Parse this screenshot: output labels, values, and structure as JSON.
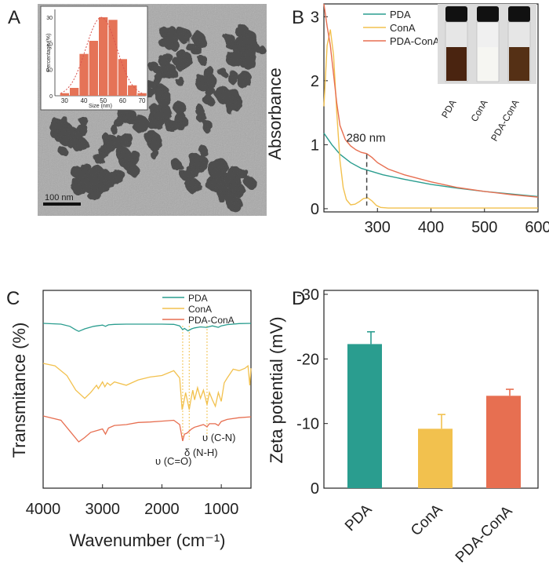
{
  "panels": {
    "a": "A",
    "b": "B",
    "c": "C",
    "d": "D"
  },
  "colors": {
    "pda": "#2a9d8f",
    "cona": "#f2c14e",
    "pdacona": "#e76f51",
    "bar_a": "#e57357"
  },
  "chart_data": [
    {
      "type": "bar",
      "panel": "A-inset",
      "categories": [
        "30",
        "35",
        "40",
        "45",
        "50",
        "55",
        "60",
        "65",
        "70"
      ],
      "values": [
        1,
        3,
        16,
        21,
        30,
        29,
        14,
        4,
        1
      ],
      "xlabel": "Size (nm)",
      "ylabel": "Percentage (%)",
      "xticks": [
        "30",
        "40",
        "50",
        "60",
        "70"
      ],
      "yticks": [
        "0",
        "10",
        "20",
        "30"
      ],
      "xlim": [
        25,
        72
      ],
      "ylim": [
        0,
        33
      ],
      "fit": "gaussian"
    },
    {
      "type": "line",
      "panel": "B",
      "xlabel": "Wavelength (nm)",
      "ylabel": "Absorbance",
      "xlim": [
        200,
        600
      ],
      "ylim": [
        -0.05,
        3.2
      ],
      "xticks": [
        "300",
        "400",
        "500",
        "600"
      ],
      "yticks": [
        "0",
        "1",
        "2",
        "3"
      ],
      "annotation": "280 nm",
      "annotation_x": 280,
      "series": [
        {
          "name": "PDA",
          "x": [
            200,
            215,
            230,
            250,
            270,
            290,
            310,
            350,
            400,
            450,
            500,
            550,
            600
          ],
          "y": [
            1.18,
            1.0,
            0.85,
            0.72,
            0.63,
            0.58,
            0.53,
            0.46,
            0.38,
            0.32,
            0.27,
            0.23,
            0.19
          ]
        },
        {
          "name": "ConA",
          "x": [
            200,
            206,
            212,
            218,
            224,
            230,
            236,
            242,
            250,
            258,
            266,
            274,
            282,
            290,
            298,
            306,
            320,
            400,
            600
          ],
          "y": [
            1.6,
            2.55,
            2.8,
            2.4,
            1.5,
            0.75,
            0.33,
            0.14,
            0.06,
            0.07,
            0.11,
            0.16,
            0.17,
            0.12,
            0.05,
            0.02,
            0.01,
            0.01,
            0.01
          ]
        },
        {
          "name": "PDA-ConA",
          "x": [
            200,
            206,
            212,
            218,
            224,
            230,
            240,
            250,
            260,
            270,
            280,
            290,
            300,
            320,
            350,
            400,
            450,
            500,
            550,
            600
          ],
          "y": [
            3.2,
            2.85,
            2.55,
            2.1,
            1.65,
            1.3,
            1.08,
            0.98,
            0.92,
            0.88,
            0.86,
            0.8,
            0.72,
            0.62,
            0.53,
            0.42,
            0.33,
            0.27,
            0.22,
            0.18
          ]
        }
      ],
      "inset_photo_labels": [
        "PDA",
        "ConA",
        "PDA-ConA"
      ]
    },
    {
      "type": "line",
      "panel": "C",
      "xlabel": "Wavenumber (cm⁻¹)",
      "ylabel": "Transmitance (%)",
      "xlim": [
        4000,
        500
      ],
      "xticks": [
        "4000",
        "3000",
        "2000",
        "1000"
      ],
      "legend": [
        "PDA",
        "ConA",
        "PDA-ConA"
      ],
      "annotations": [
        "υ (C=O)",
        "δ (N-H)",
        "υ (C-N)"
      ],
      "annotation_x": [
        1650,
        1540,
        1240
      ],
      "series": [
        {
          "name": "PDA",
          "x": [
            4000,
            3700,
            3550,
            3450,
            3400,
            3300,
            3150,
            3000,
            2950,
            2900,
            2800,
            2600,
            2400,
            2200,
            2000,
            1800,
            1700,
            1650,
            1620,
            1560,
            1500,
            1450,
            1350,
            1250,
            1150,
            1050,
            1000,
            900,
            700,
            500
          ],
          "y": [
            0,
            0.03,
            0.12,
            0.26,
            0.32,
            0.22,
            0.12,
            0.07,
            0.12,
            0.06,
            0.04,
            0.03,
            0.03,
            0.03,
            0.03,
            0.04,
            0.1,
            0.25,
            0.2,
            0.3,
            0.22,
            0.18,
            0.14,
            0.16,
            0.1,
            0.16,
            0.1,
            0.05,
            0.01,
            0
          ]
        },
        {
          "name": "ConA",
          "x": [
            4000,
            3800,
            3600,
            3450,
            3300,
            3200,
            3100,
            3070,
            3000,
            2960,
            2920,
            2870,
            2800,
            2600,
            2400,
            2200,
            2000,
            1900,
            1800,
            1700,
            1660,
            1640,
            1600,
            1540,
            1520,
            1480,
            1450,
            1400,
            1350,
            1300,
            1240,
            1200,
            1150,
            1100,
            1050,
            1000,
            950,
            900,
            800,
            700,
            600,
            550,
            520,
            500
          ],
          "y": [
            0,
            0.05,
            0.25,
            0.55,
            0.72,
            0.6,
            0.45,
            0.52,
            0.38,
            0.48,
            0.4,
            0.45,
            0.38,
            0.45,
            0.34,
            0.28,
            0.25,
            0.2,
            0.15,
            0.3,
            0.95,
            0.85,
            0.6,
            0.95,
            0.8,
            0.55,
            0.75,
            0.5,
            0.72,
            0.55,
            0.85,
            0.6,
            0.75,
            0.88,
            0.6,
            0.78,
            0.4,
            0.3,
            0.12,
            0.15,
            0.1,
            0.05,
            0.45,
            0.1
          ]
        },
        {
          "name": "PDA-ConA",
          "x": [
            4000,
            3700,
            3550,
            3400,
            3300,
            3200,
            3000,
            2950,
            2900,
            2800,
            2600,
            2400,
            2200,
            2000,
            1800,
            1700,
            1650,
            1620,
            1580,
            1540,
            1500,
            1450,
            1400,
            1300,
            1240,
            1200,
            1100,
            1050,
            1000,
            900,
            700,
            500
          ],
          "y": [
            0,
            0.1,
            0.35,
            0.6,
            0.5,
            0.38,
            0.3,
            0.42,
            0.28,
            0.22,
            0.2,
            0.15,
            0.14,
            0.12,
            0.1,
            0.2,
            0.58,
            0.42,
            0.4,
            0.35,
            0.3,
            0.26,
            0.24,
            0.2,
            0.25,
            0.18,
            0.18,
            0.22,
            0.13,
            0.08,
            0.04,
            0.02
          ]
        }
      ]
    },
    {
      "type": "bar",
      "panel": "D",
      "categories": [
        "PDA",
        "ConA",
        "PDA-ConA"
      ],
      "values": [
        -22.3,
        -9.2,
        -14.3
      ],
      "errors": [
        1.9,
        2.2,
        1.0
      ],
      "ylabel": "Zeta potential (mV)",
      "ylim": [
        0,
        -30
      ],
      "yticks": [
        "-30",
        "-20",
        "-10",
        "0"
      ]
    }
  ]
}
